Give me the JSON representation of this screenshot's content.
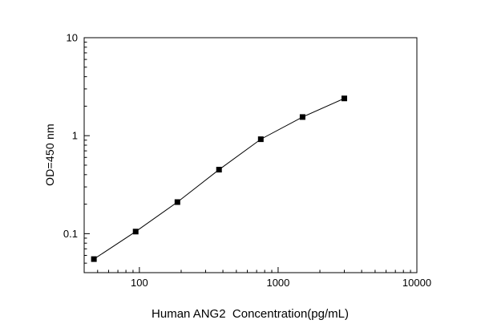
{
  "chart_data": {
    "type": "scatter",
    "title": "",
    "xlabel": "Human ANG2  Concentration(pg/mL)",
    "ylabel": "OD=450 nm",
    "xscale": "log",
    "yscale": "log",
    "xlim": [
      40,
      10000
    ],
    "ylim": [
      0.04,
      10
    ],
    "x_ticks": [
      100,
      1000,
      10000
    ],
    "x_tick_labels": [
      "100",
      "1000",
      "10000"
    ],
    "y_ticks": [
      0.1,
      1,
      10
    ],
    "y_tick_labels": [
      "0.1",
      "1",
      "10"
    ],
    "grid": false,
    "legend": "none",
    "marker": "filled-square",
    "line_color": "#000000",
    "marker_color": "#000000",
    "x": [
      47,
      94,
      188,
      375,
      750,
      1500,
      3000
    ],
    "y": [
      0.055,
      0.105,
      0.21,
      0.45,
      0.92,
      1.55,
      2.4
    ]
  }
}
